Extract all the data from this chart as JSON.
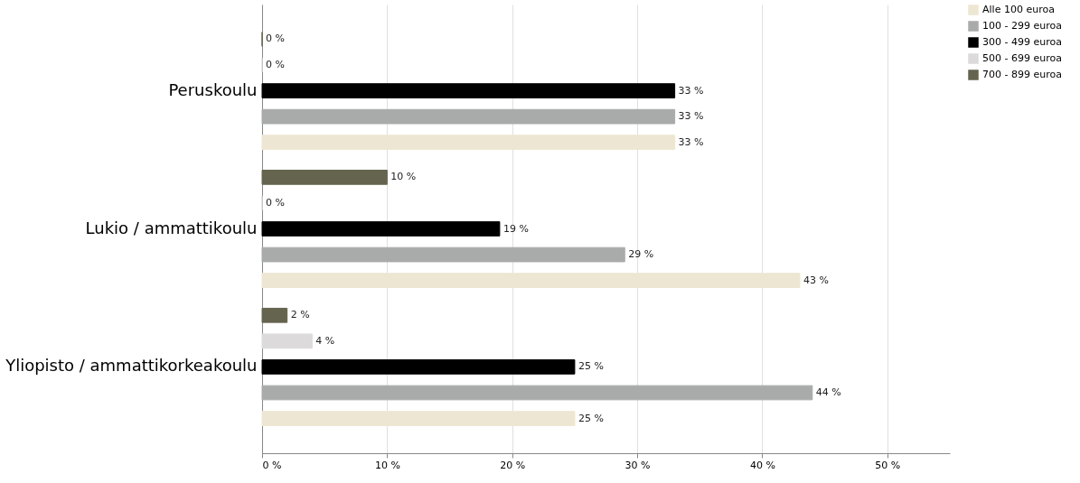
{
  "chart_data": {
    "type": "bar",
    "orientation": "horizontal",
    "categories": [
      "Peruskoulu",
      "Lukio / ammattikoulu",
      "Yliopisto / ammattikorkeakoulu"
    ],
    "series": [
      {
        "name": "Alle 100 euroa",
        "color": "#ede6d2",
        "values": [
          33,
          43,
          25
        ],
        "value_labels": [
          "33 %",
          "43 %",
          "25 %"
        ]
      },
      {
        "name": "100 - 299 euroa",
        "color": "#a9abaa",
        "values": [
          33,
          29,
          44
        ],
        "value_labels": [
          "33 %",
          "29 %",
          "44 %"
        ]
      },
      {
        "name": "300 - 499 euroa",
        "color": "#000000",
        "values": [
          33,
          19,
          25
        ],
        "value_labels": [
          "33 %",
          "19 %",
          "25 %"
        ]
      },
      {
        "name": "500 - 699 euroa",
        "color": "#dcdadb",
        "values": [
          0,
          0,
          4
        ],
        "value_labels": [
          "0 %",
          "0 %",
          "4 %"
        ]
      },
      {
        "name": "700 - 899 euroa",
        "color": "#65644f",
        "values": [
          0,
          10,
          2
        ],
        "value_labels": [
          "0 %",
          "10 %",
          "2 %"
        ]
      }
    ],
    "xlim": [
      0,
      55
    ],
    "xticks": [
      {
        "value": 0,
        "label": "0 %"
      },
      {
        "value": 10,
        "label": "10 %"
      },
      {
        "value": 20,
        "label": "20 %"
      },
      {
        "value": 30,
        "label": "30 %"
      },
      {
        "value": 40,
        "label": "40 %"
      },
      {
        "value": 50,
        "label": "50 %"
      }
    ],
    "grid": "x",
    "legend": "top right"
  }
}
